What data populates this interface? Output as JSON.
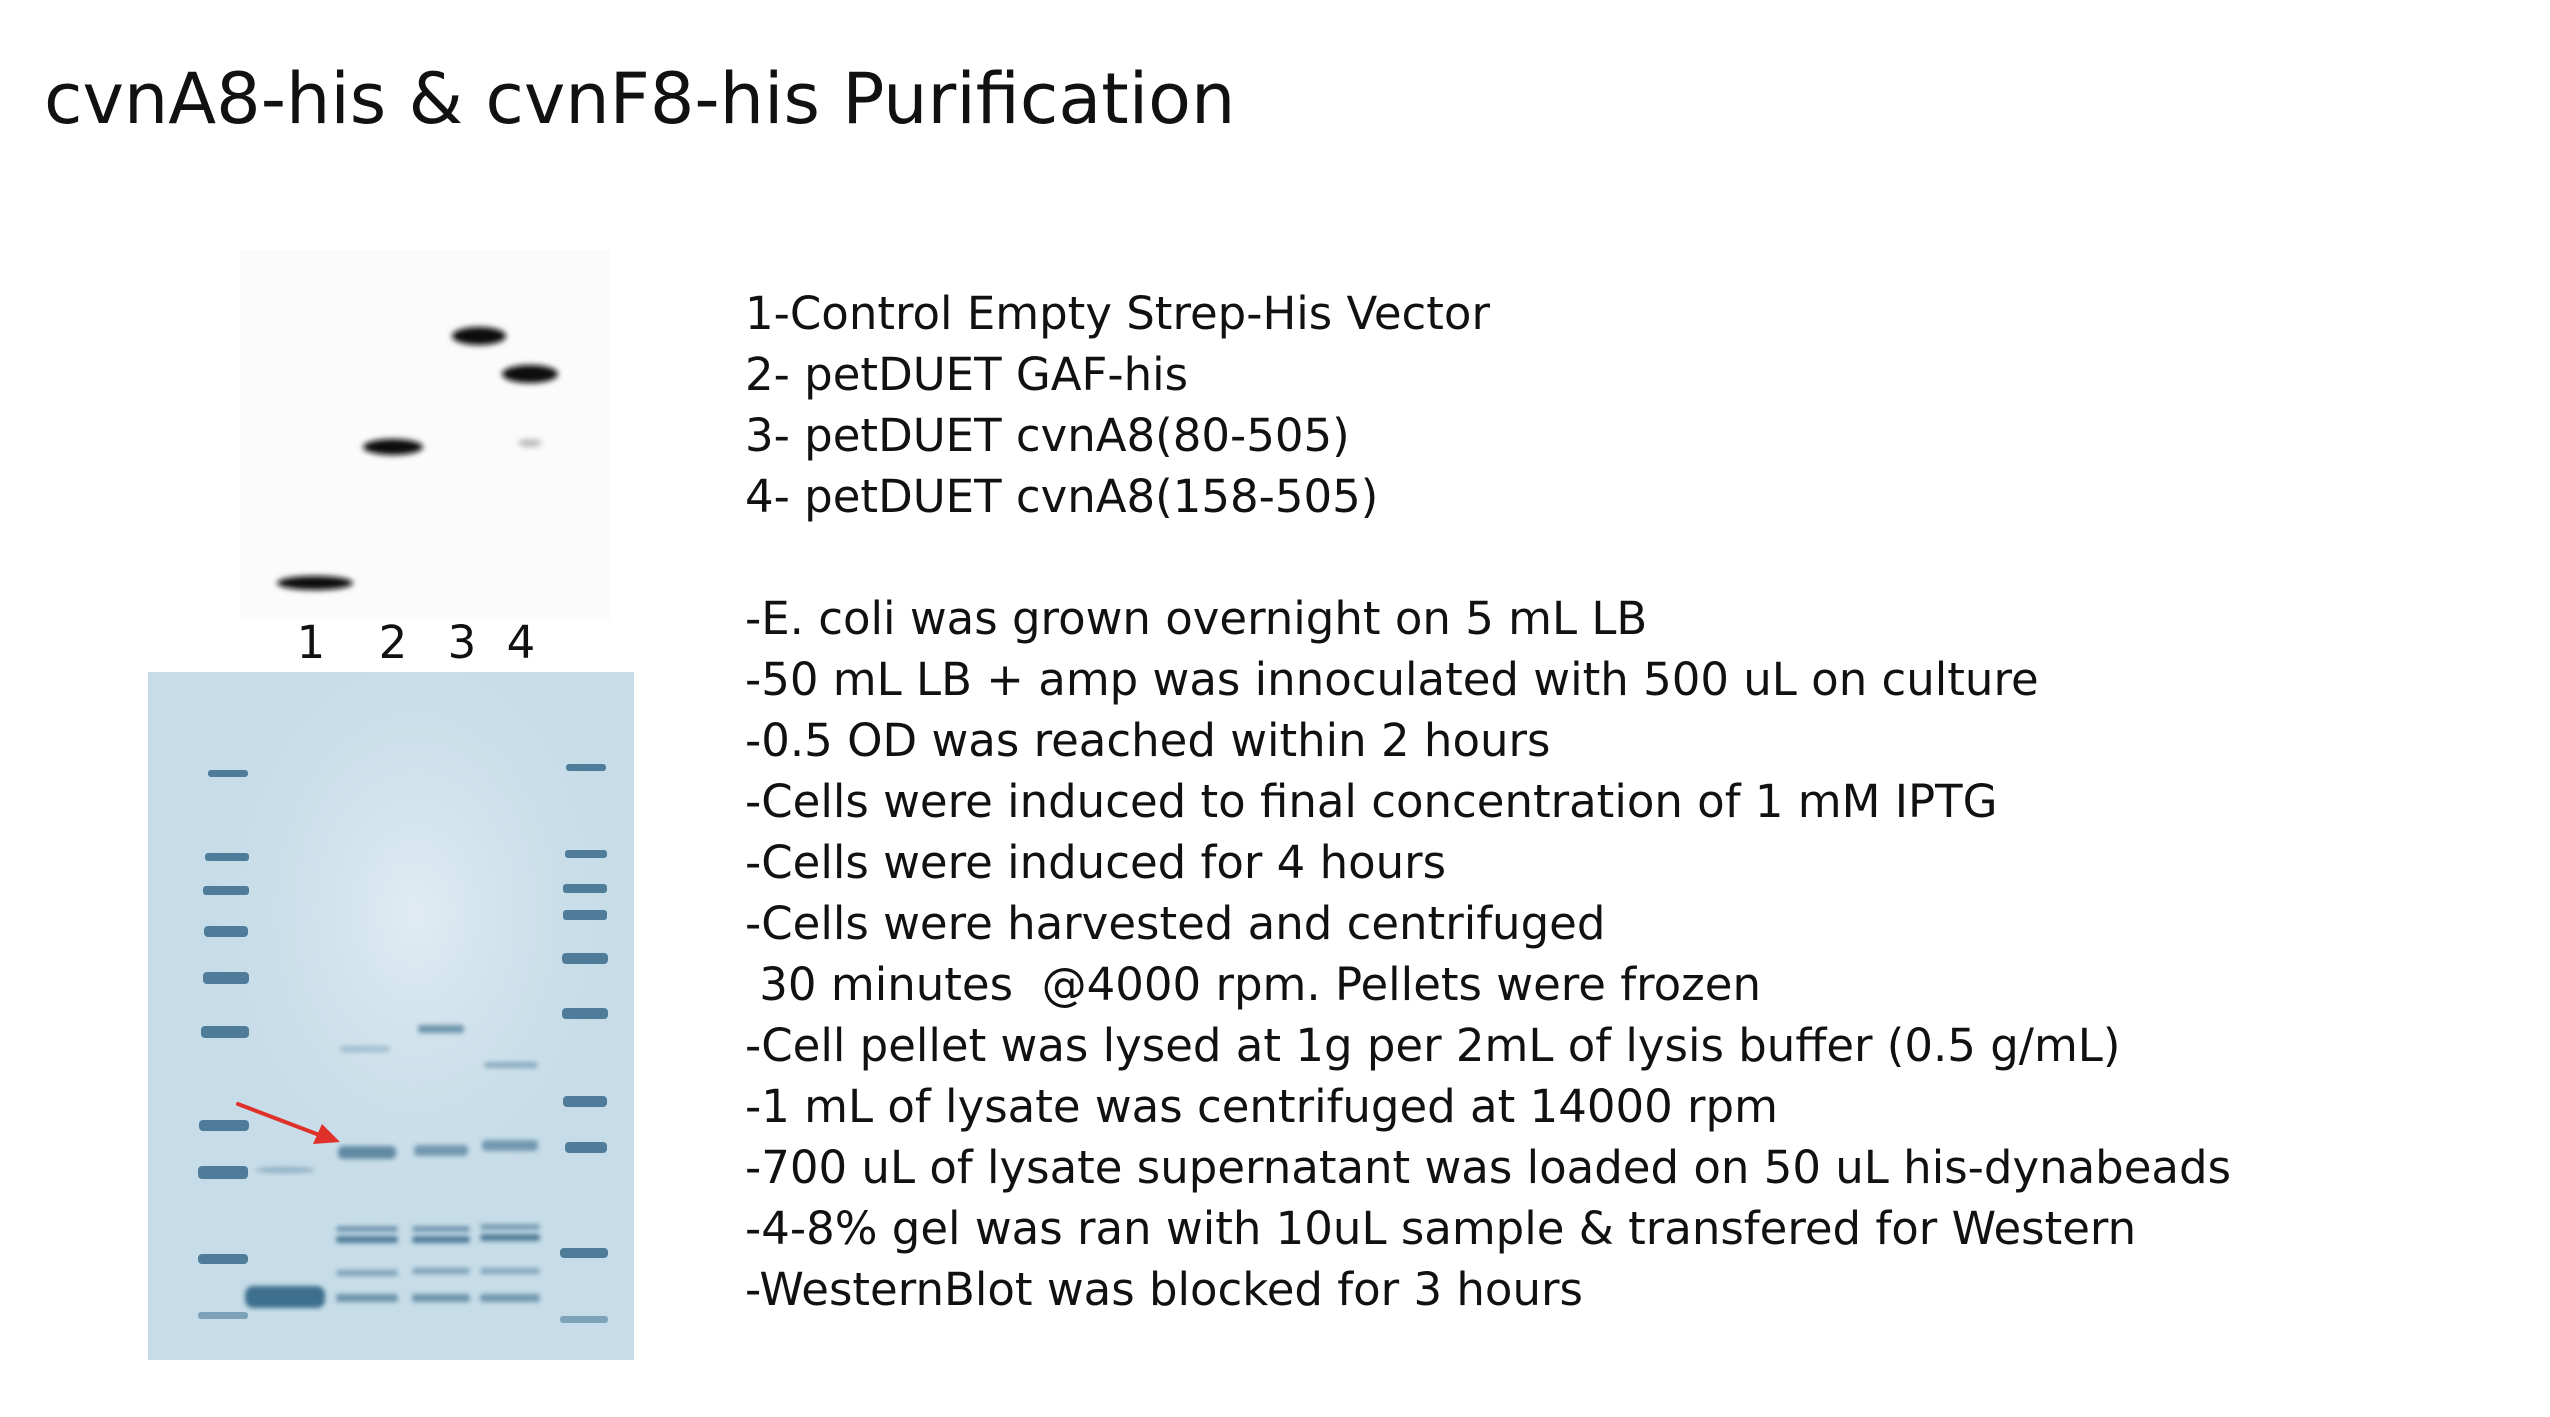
{
  "title": "cvnA8-his & cvnF8-his Purification",
  "lane_labels": [
    "1",
    "2",
    "3",
    "4"
  ],
  "legend": {
    "samples": [
      "1-Control Empty Strep-His Vector",
      "2- petDUET GAF-his",
      "3- petDUET cvnA8(80-505)",
      "4- petDUET cvnA8(158-505)"
    ],
    "protocol": [
      "-E. coli was grown overnight on 5 mL LB",
      "-50 mL LB + amp was innoculated with 500 uL on culture",
      "-0.5 OD was reached within 2 hours",
      "-Cells were induced to final concentration of 1 mM IPTG",
      "-Cells were induced for 4 hours",
      "-Cells were harvested and centrifuged",
      " 30 minutes  @4000 rpm. Pellets were frozen",
      "-Cell pellet was lysed at 1g per 2mL of lysis buffer (0.5 g/mL)",
      "-1 mL of lysate was centrifuged at 14000 rpm",
      "-700 uL of lysate supernatant was loaded on 50 uL his-dynabeads",
      "-4-8% gel was ran with 10uL sample & transfered for Western",
      "-WesternBlot was blocked for 3 hours"
    ]
  },
  "colors": {
    "gel_background": "#c6dce8",
    "gel_band": "#4f7c98",
    "western_band": "#111111",
    "arrow": "#e0302a"
  }
}
